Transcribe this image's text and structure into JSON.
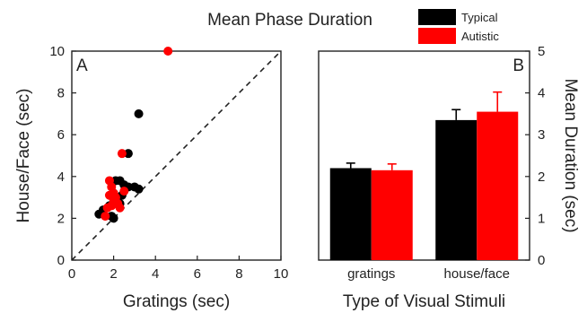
{
  "title": "Mean Phase Duration",
  "colors": {
    "typical": "#000000",
    "autistic": "#ff0000"
  },
  "legend": [
    {
      "label": "Typical",
      "color": "#000000"
    },
    {
      "label": "Autistic",
      "color": "#ff0000"
    }
  ],
  "chart_data": [
    {
      "type": "scatter",
      "panel_label": "A",
      "xlabel": "Gratings (sec)",
      "ylabel": "House/Face (sec)",
      "xlim": [
        0,
        10
      ],
      "ylim": [
        0,
        10
      ],
      "xticks": [
        "0",
        "2",
        "4",
        "6",
        "8",
        "10"
      ],
      "yticks": [
        "0",
        "2",
        "4",
        "6",
        "8",
        "10"
      ],
      "reference_line": "y = x (dashed)",
      "series": [
        {
          "name": "Typical",
          "color": "#000000",
          "points": [
            [
              1.3,
              2.2
            ],
            [
              1.5,
              2.4
            ],
            [
              1.9,
              2.1
            ],
            [
              2.0,
              2.0
            ],
            [
              2.1,
              3.8
            ],
            [
              2.3,
              3.8
            ],
            [
              2.5,
              3.6
            ],
            [
              2.7,
              3.5
            ],
            [
              3.0,
              3.5
            ],
            [
              3.2,
              3.4
            ],
            [
              2.3,
              2.7
            ],
            [
              2.7,
              5.1
            ],
            [
              3.2,
              7.0
            ],
            [
              2.0,
              3.2
            ],
            [
              1.8,
              2.6
            ],
            [
              2.4,
              3.1
            ]
          ]
        },
        {
          "name": "Autistic",
          "color": "#ff0000",
          "points": [
            [
              1.6,
              2.1
            ],
            [
              1.7,
              2.5
            ],
            [
              1.8,
              3.8
            ],
            [
              1.9,
              3.5
            ],
            [
              2.0,
              3.2
            ],
            [
              2.1,
              3.0
            ],
            [
              2.2,
              2.7
            ],
            [
              2.3,
              2.5
            ],
            [
              2.5,
              3.3
            ],
            [
              1.9,
              2.6
            ],
            [
              2.4,
              5.1
            ],
            [
              4.6,
              10.0
            ],
            [
              2.0,
              2.9
            ],
            [
              1.8,
              3.1
            ]
          ]
        }
      ]
    },
    {
      "type": "bar",
      "panel_label": "B",
      "xlabel": "Type of Visual Stimuli",
      "ylabel": "Mean Duration (sec)",
      "ylim": [
        0,
        5
      ],
      "yticks": [
        "0",
        "1",
        "2",
        "3",
        "4",
        "5"
      ],
      "categories": [
        "gratings",
        "house/face"
      ],
      "series": [
        {
          "name": "Typical",
          "color": "#000000",
          "values": [
            2.2,
            3.35
          ],
          "errors": [
            0.12,
            0.25
          ]
        },
        {
          "name": "Autistic",
          "color": "#ff0000",
          "values": [
            2.15,
            3.55
          ],
          "errors": [
            0.15,
            0.47
          ]
        }
      ]
    }
  ]
}
